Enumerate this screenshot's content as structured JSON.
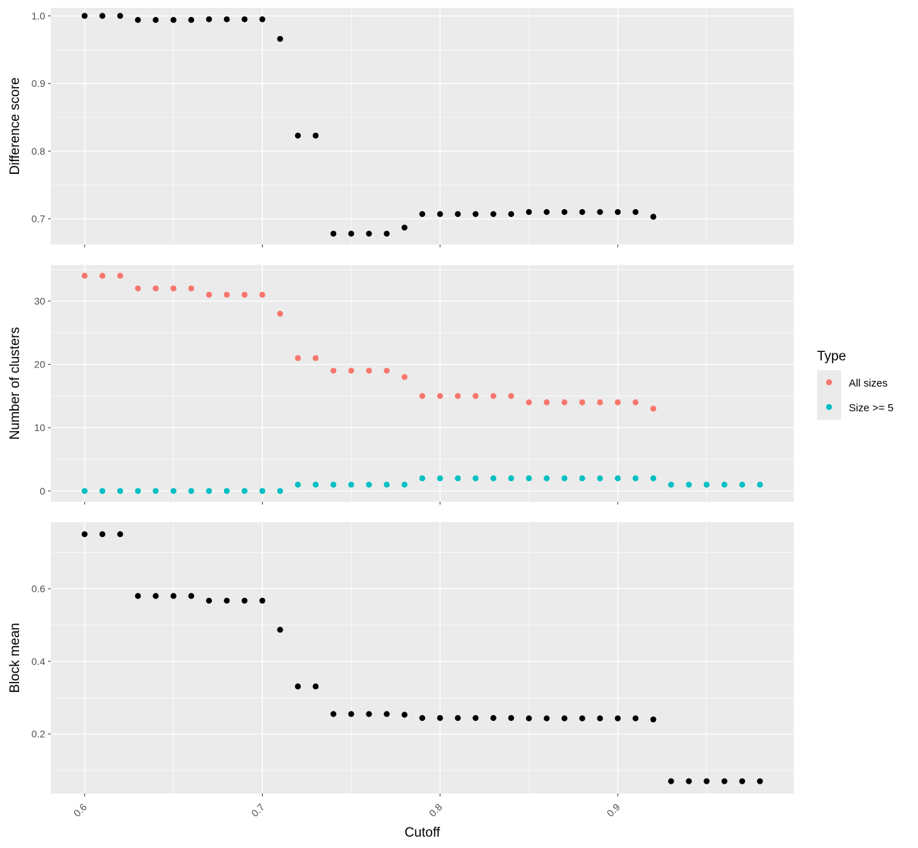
{
  "chart_data": {
    "type": "scatter",
    "xlabel": "Cutoff",
    "x_ticks": [
      "0.6",
      "0.7",
      "0.8",
      "0.9"
    ],
    "xlim": [
      0.581,
      0.999
    ],
    "legend": {
      "title": "Type",
      "position": "right",
      "entries": [
        {
          "label": "All sizes",
          "color": "#F8766D"
        },
        {
          "label": "Size >= 5",
          "color": "#00BFC4"
        }
      ]
    },
    "panels": [
      {
        "ylabel": "Difference score",
        "ylim": [
          0.662,
          1.012
        ],
        "y_ticks": [
          "0.7",
          "0.8",
          "0.9",
          "1.0"
        ],
        "grid": true,
        "series": [
          {
            "color": "#000000",
            "x": [
              0.6,
              0.61,
              0.62,
              0.63,
              0.64,
              0.65,
              0.66,
              0.67,
              0.68,
              0.69,
              0.7,
              0.71,
              0.72,
              0.73,
              0.74,
              0.75,
              0.76,
              0.77,
              0.78,
              0.79,
              0.8,
              0.81,
              0.82,
              0.83,
              0.84,
              0.85,
              0.86,
              0.87,
              0.88,
              0.89,
              0.9,
              0.91,
              0.92
            ],
            "y": [
              1.0,
              1.0,
              1.0,
              0.994,
              0.994,
              0.994,
              0.994,
              0.995,
              0.995,
              0.995,
              0.995,
              0.966,
              0.823,
              0.823,
              0.678,
              0.678,
              0.678,
              0.678,
              0.687,
              0.707,
              0.707,
              0.707,
              0.707,
              0.707,
              0.707,
              0.71,
              0.71,
              0.71,
              0.71,
              0.71,
              0.71,
              0.71,
              0.703
            ]
          }
        ]
      },
      {
        "ylabel": "Number of clusters",
        "ylim": [
          -1.7,
          35.7
        ],
        "y_ticks": [
          "0",
          "10",
          "20",
          "30"
        ],
        "grid": true,
        "series": [
          {
            "name": "All sizes",
            "color": "#F8766D",
            "x": [
              0.6,
              0.61,
              0.62,
              0.63,
              0.64,
              0.65,
              0.66,
              0.67,
              0.68,
              0.69,
              0.7,
              0.71,
              0.72,
              0.73,
              0.74,
              0.75,
              0.76,
              0.77,
              0.78,
              0.79,
              0.8,
              0.81,
              0.82,
              0.83,
              0.84,
              0.85,
              0.86,
              0.87,
              0.88,
              0.89,
              0.9,
              0.91,
              0.92
            ],
            "y": [
              34,
              34,
              34,
              32,
              32,
              32,
              32,
              31,
              31,
              31,
              31,
              28,
              21,
              21,
              19,
              19,
              19,
              19,
              18,
              15,
              15,
              15,
              15,
              15,
              15,
              14,
              14,
              14,
              14,
              14,
              14,
              14,
              13
            ]
          },
          {
            "name": "Size >= 5",
            "color": "#00BFC4",
            "x": [
              0.6,
              0.61,
              0.62,
              0.63,
              0.64,
              0.65,
              0.66,
              0.67,
              0.68,
              0.69,
              0.7,
              0.71,
              0.72,
              0.73,
              0.74,
              0.75,
              0.76,
              0.77,
              0.78,
              0.79,
              0.8,
              0.81,
              0.82,
              0.83,
              0.84,
              0.85,
              0.86,
              0.87,
              0.88,
              0.89,
              0.9,
              0.91,
              0.92,
              0.93,
              0.94,
              0.95,
              0.96,
              0.97,
              0.98
            ],
            "y": [
              0,
              0,
              0,
              0,
              0,
              0,
              0,
              0,
              0,
              0,
              0,
              0,
              1,
              1,
              1,
              1,
              1,
              1,
              1,
              2,
              2,
              2,
              2,
              2,
              2,
              2,
              2,
              2,
              2,
              2,
              2,
              2,
              2,
              1,
              1,
              1,
              1,
              1,
              1
            ]
          }
        ]
      },
      {
        "ylabel": "Block mean",
        "ylim": [
          0.036,
          0.783
        ],
        "y_ticks": [
          "0.2",
          "0.4",
          "0.6"
        ],
        "grid": true,
        "series": [
          {
            "color": "#000000",
            "x": [
              0.6,
              0.61,
              0.62,
              0.63,
              0.64,
              0.65,
              0.66,
              0.67,
              0.68,
              0.69,
              0.7,
              0.71,
              0.72,
              0.73,
              0.74,
              0.75,
              0.76,
              0.77,
              0.78,
              0.79,
              0.8,
              0.81,
              0.82,
              0.83,
              0.84,
              0.85,
              0.86,
              0.87,
              0.88,
              0.89,
              0.9,
              0.91,
              0.92,
              0.93,
              0.94,
              0.95,
              0.96,
              0.97,
              0.98
            ],
            "y": [
              0.75,
              0.75,
              0.75,
              0.58,
              0.58,
              0.58,
              0.58,
              0.567,
              0.567,
              0.567,
              0.567,
              0.487,
              0.331,
              0.331,
              0.255,
              0.255,
              0.255,
              0.255,
              0.253,
              0.244,
              0.244,
              0.244,
              0.244,
              0.244,
              0.244,
              0.243,
              0.243,
              0.243,
              0.243,
              0.243,
              0.243,
              0.243,
              0.24,
              0.07,
              0.07,
              0.07,
              0.07,
              0.07,
              0.07
            ]
          }
        ]
      }
    ]
  }
}
